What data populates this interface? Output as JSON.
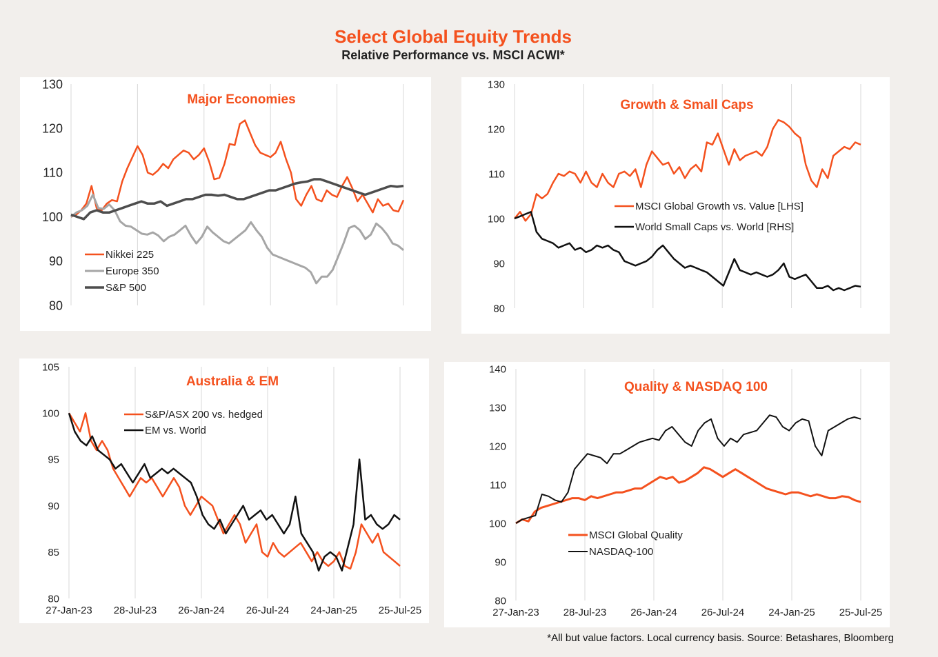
{
  "header": {
    "title": "Select Global Equity Trends",
    "subtitle": "Relative Performance vs. MSCI ACWI*"
  },
  "footnote": "*All but value factors. Local currency basis.  Source: Betashares, Bloomberg",
  "colors": {
    "orange": "#f4511e",
    "black": "#111111",
    "gray": "#a6a6a6",
    "dark_gray": "#4d4d4d",
    "title_orange": "#f4511e"
  },
  "chart_data": [
    {
      "type": "line",
      "title": "Major Economies",
      "x_range": [
        "27-Jan-23",
        "25-Jul-25"
      ],
      "xtick_labels": [],
      "ylim": [
        80,
        130
      ],
      "yticks": [
        "130",
        "120",
        "110",
        "100",
        "90",
        "80"
      ],
      "grid": "vertical",
      "legend_position": "lower-left",
      "series": [
        {
          "name": "Nikkei 225",
          "color": "#f4511e",
          "values": [
            100,
            100.5,
            101.5,
            103,
            107,
            102,
            101.5,
            103,
            103.8,
            103.5,
            108,
            111,
            113.5,
            116,
            114,
            110,
            109.5,
            110.5,
            112,
            111,
            113,
            114,
            115,
            114.5,
            113,
            114,
            115.5,
            112.5,
            108.5,
            108.8,
            112,
            116.5,
            116.2,
            121,
            121.8,
            119,
            116.2,
            114.5,
            114,
            113.5,
            114.5,
            117,
            113.2,
            110,
            104,
            102.5,
            105,
            107,
            104,
            103.5,
            106,
            105,
            104.5,
            107,
            109,
            106.5,
            103.5,
            105,
            103,
            101,
            104,
            102.5,
            103,
            101.5,
            101.2,
            103.8
          ]
        },
        {
          "name": "Europe 350",
          "color": "#a6a6a6",
          "values": [
            100,
            101,
            101.5,
            102.5,
            105,
            102,
            101.8,
            102.8,
            101.5,
            99,
            98,
            97.8,
            97,
            96.2,
            96,
            96.5,
            95.8,
            94.5,
            95.5,
            96,
            97,
            98,
            95.8,
            94,
            95.5,
            97.8,
            96.5,
            95.5,
            94.5,
            94,
            95,
            96,
            97,
            98.8,
            97,
            95.5,
            93,
            91.5,
            91,
            90.5,
            90,
            89.5,
            89,
            88.5,
            87.5,
            85,
            86.5,
            86.5,
            88,
            91,
            94,
            97.5,
            98,
            97,
            95,
            96,
            98.5,
            97.5,
            96,
            94,
            93.5,
            92.5
          ]
        },
        {
          "name": "S&P 500",
          "color": "#4d4d4d",
          "values": [
            100.5,
            100,
            99.5,
            101,
            101.5,
            101,
            101,
            101.5,
            102,
            102.5,
            103,
            103.5,
            103,
            103,
            103.5,
            102.5,
            103,
            103.5,
            104,
            104,
            104.5,
            105,
            105,
            104.8,
            105,
            104.5,
            104,
            104,
            104.5,
            105,
            105.5,
            106,
            106,
            106.5,
            107,
            107.5,
            107.8,
            108,
            108.5,
            108.5,
            108,
            107.5,
            107,
            106.5,
            106,
            105.5,
            105,
            105.5,
            106,
            106.5,
            107,
            106.8,
            107
          ]
        }
      ]
    },
    {
      "type": "line",
      "title": "Growth & Small Caps",
      "x_range": [
        "27-Jan-23",
        "25-Jul-25"
      ],
      "xtick_labels": [],
      "ylim": [
        80,
        130
      ],
      "yticks": [
        "130",
        "120",
        "110",
        "100",
        "90",
        "80"
      ],
      "grid": "vertical",
      "legend_position": "center-right",
      "series": [
        {
          "name": "MSCI Global Growth vs. Value [LHS]",
          "color": "#f4511e",
          "values": [
            100,
            101.5,
            99.5,
            101,
            105.5,
            104.5,
            105.5,
            108,
            110,
            109.5,
            110.5,
            110,
            108,
            110.5,
            108,
            107,
            110,
            108,
            107,
            110,
            110.5,
            109.5,
            111,
            107,
            112,
            115,
            113.5,
            112,
            112.5,
            110,
            111.5,
            109,
            111,
            112,
            110.5,
            117,
            116.5,
            119,
            115.5,
            112,
            115.5,
            113,
            114,
            114.5,
            115,
            114,
            116,
            120,
            122,
            121.5,
            120.5,
            119,
            118,
            112,
            108.5,
            107,
            111,
            109,
            114,
            115,
            116,
            115.5,
            117,
            116.5
          ]
        },
        {
          "name": "World Small Caps vs. World [RHS]",
          "color": "#111111",
          "values": [
            100,
            100.5,
            101,
            101.5,
            97,
            95.5,
            95,
            94.5,
            93.5,
            94,
            94.5,
            93,
            93.5,
            92.5,
            93,
            94,
            93.5,
            94,
            93,
            92.5,
            90.5,
            90,
            89.5,
            90,
            90.5,
            91.5,
            93,
            94,
            92.5,
            91,
            90,
            89,
            89.5,
            89,
            88.5,
            88,
            87,
            86,
            85,
            88,
            91,
            88.5,
            88,
            87.5,
            88,
            87.5,
            87,
            87.5,
            88.5,
            90,
            87,
            86.5,
            87,
            87.5,
            86,
            84.5,
            84.5,
            85,
            84,
            84.5,
            84,
            84.5,
            85,
            84.8
          ]
        }
      ]
    },
    {
      "type": "line",
      "title": "Australia & EM",
      "x_range": [
        "27-Jan-23",
        "25-Jul-25"
      ],
      "xtick_labels": [
        "27-Jan-23",
        "28-Jul-23",
        "26-Jan-24",
        "26-Jul-24",
        "24-Jan-25",
        "25-Jul-25"
      ],
      "ylim": [
        80,
        105
      ],
      "yticks": [
        "105",
        "100",
        "95",
        "90",
        "85",
        "80"
      ],
      "grid": "vertical",
      "legend_position": "top-center",
      "series": [
        {
          "name": "S&P/ASX 200 vs. hedged",
          "color": "#f4511e",
          "values": [
            100,
            99,
            98,
            100,
            97,
            96,
            97,
            96,
            94,
            93,
            92,
            91,
            92,
            93,
            92.5,
            93,
            92,
            91,
            92,
            93,
            92,
            90,
            89,
            90,
            91,
            90.5,
            90,
            88.5,
            87,
            88,
            89,
            88,
            86,
            87,
            88,
            85,
            84.5,
            86,
            85,
            84.5,
            85,
            85.5,
            86,
            85,
            84,
            85,
            84,
            83.5,
            84,
            85,
            83.5,
            83.2,
            85,
            88,
            87,
            86,
            87,
            85,
            84.5,
            84,
            83.5
          ]
        },
        {
          "name": "EM vs. World",
          "color": "#111111",
          "values": [
            100,
            98,
            97,
            96.5,
            97.5,
            96,
            95.5,
            95,
            94,
            94.5,
            93.5,
            92.5,
            93.5,
            94.5,
            93,
            93.5,
            94,
            93.5,
            94,
            93.5,
            93,
            92.5,
            91,
            89,
            88,
            87.5,
            88.5,
            87,
            88,
            89,
            90,
            88.5,
            89,
            89.5,
            88.5,
            89,
            88,
            87,
            88,
            91,
            87,
            86,
            85,
            83,
            84.5,
            85,
            84.5,
            83,
            85.5,
            88,
            95,
            88.5,
            89,
            88,
            87.5,
            88,
            89,
            88.5
          ]
        }
      ]
    },
    {
      "type": "line",
      "title": "Quality & NASDAQ 100",
      "x_range": [
        "27-Jan-23",
        "25-Jul-25"
      ],
      "xtick_labels": [
        "27-Jan-23",
        "28-Jul-23",
        "26-Jan-24",
        "26-Jul-24",
        "24-Jan-25",
        "25-Jul-25"
      ],
      "ylim": [
        80,
        140
      ],
      "yticks": [
        "140",
        "130",
        "120",
        "110",
        "100",
        "90",
        "80"
      ],
      "grid": "vertical",
      "legend_position": "lower-left",
      "series": [
        {
          "name": "MSCI Global Quality",
          "color": "#f4511e",
          "values": [
            100,
            101,
            100.5,
            103,
            104,
            104.5,
            105,
            105.5,
            106,
            106.5,
            106.5,
            106,
            107,
            106.5,
            107,
            107.5,
            108,
            108,
            108.5,
            109,
            109,
            110,
            111,
            112,
            111.5,
            112,
            110.5,
            111,
            112,
            113,
            114.5,
            114,
            113,
            112,
            113,
            114,
            113,
            112,
            111,
            110,
            109,
            108.5,
            108,
            107.5,
            108,
            108,
            107.5,
            107,
            107.5,
            107,
            106.5,
            106.5,
            107,
            106.8,
            106,
            105.5
          ]
        },
        {
          "name": "NASDAQ-100",
          "color": "#111111",
          "values": [
            100,
            101,
            101.5,
            102,
            107.5,
            107,
            106,
            105.5,
            108,
            114,
            116,
            118,
            117.5,
            117,
            115.5,
            118,
            118,
            119,
            120,
            121,
            121.5,
            122,
            121.5,
            124,
            125,
            123,
            121,
            120,
            124,
            126,
            127,
            122,
            120,
            122,
            121,
            123,
            123.5,
            124,
            126,
            128,
            127.5,
            125,
            124,
            126,
            127,
            126.5,
            120,
            117.5,
            124,
            125,
            126,
            127,
            127.5,
            127
          ]
        }
      ]
    }
  ]
}
